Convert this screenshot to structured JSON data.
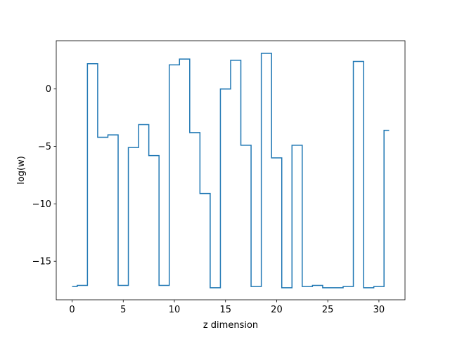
{
  "chart_data": {
    "type": "line",
    "drawstyle": "steps-mid",
    "xlabel": "z dimension",
    "ylabel": "log(w)",
    "xlim": [
      -1.55,
      32.55
    ],
    "ylim": [
      -18.35,
      4.2
    ],
    "grid": false,
    "legend": "none",
    "xticks": [
      0,
      5,
      10,
      15,
      20,
      25,
      30
    ],
    "xtick_labels": [
      "0",
      "5",
      "10",
      "15",
      "20",
      "25",
      "30"
    ],
    "yticks": [
      0,
      -5,
      -10,
      -15
    ],
    "ytick_labels": [
      "0",
      "−5",
      "−10",
      "−15"
    ],
    "series": [
      {
        "color": "#1f77b4",
        "x": [
          0,
          1,
          2,
          3,
          4,
          5,
          6,
          7,
          8,
          9,
          10,
          11,
          12,
          13,
          14,
          15,
          16,
          17,
          18,
          19,
          20,
          21,
          22,
          23,
          24,
          25,
          26,
          27,
          28,
          29,
          30,
          31
        ],
        "values": [
          -17.2,
          -17.1,
          2.2,
          -4.2,
          -4.0,
          -17.1,
          -5.1,
          -3.1,
          -5.8,
          -17.1,
          2.1,
          2.6,
          -3.8,
          -9.1,
          -17.3,
          0.0,
          2.5,
          -4.9,
          -17.2,
          3.1,
          -6.0,
          -17.3,
          -4.9,
          -17.2,
          -17.1,
          -17.3,
          -17.3,
          -17.2,
          2.4,
          -17.3,
          -17.2,
          -3.6
        ]
      }
    ]
  }
}
